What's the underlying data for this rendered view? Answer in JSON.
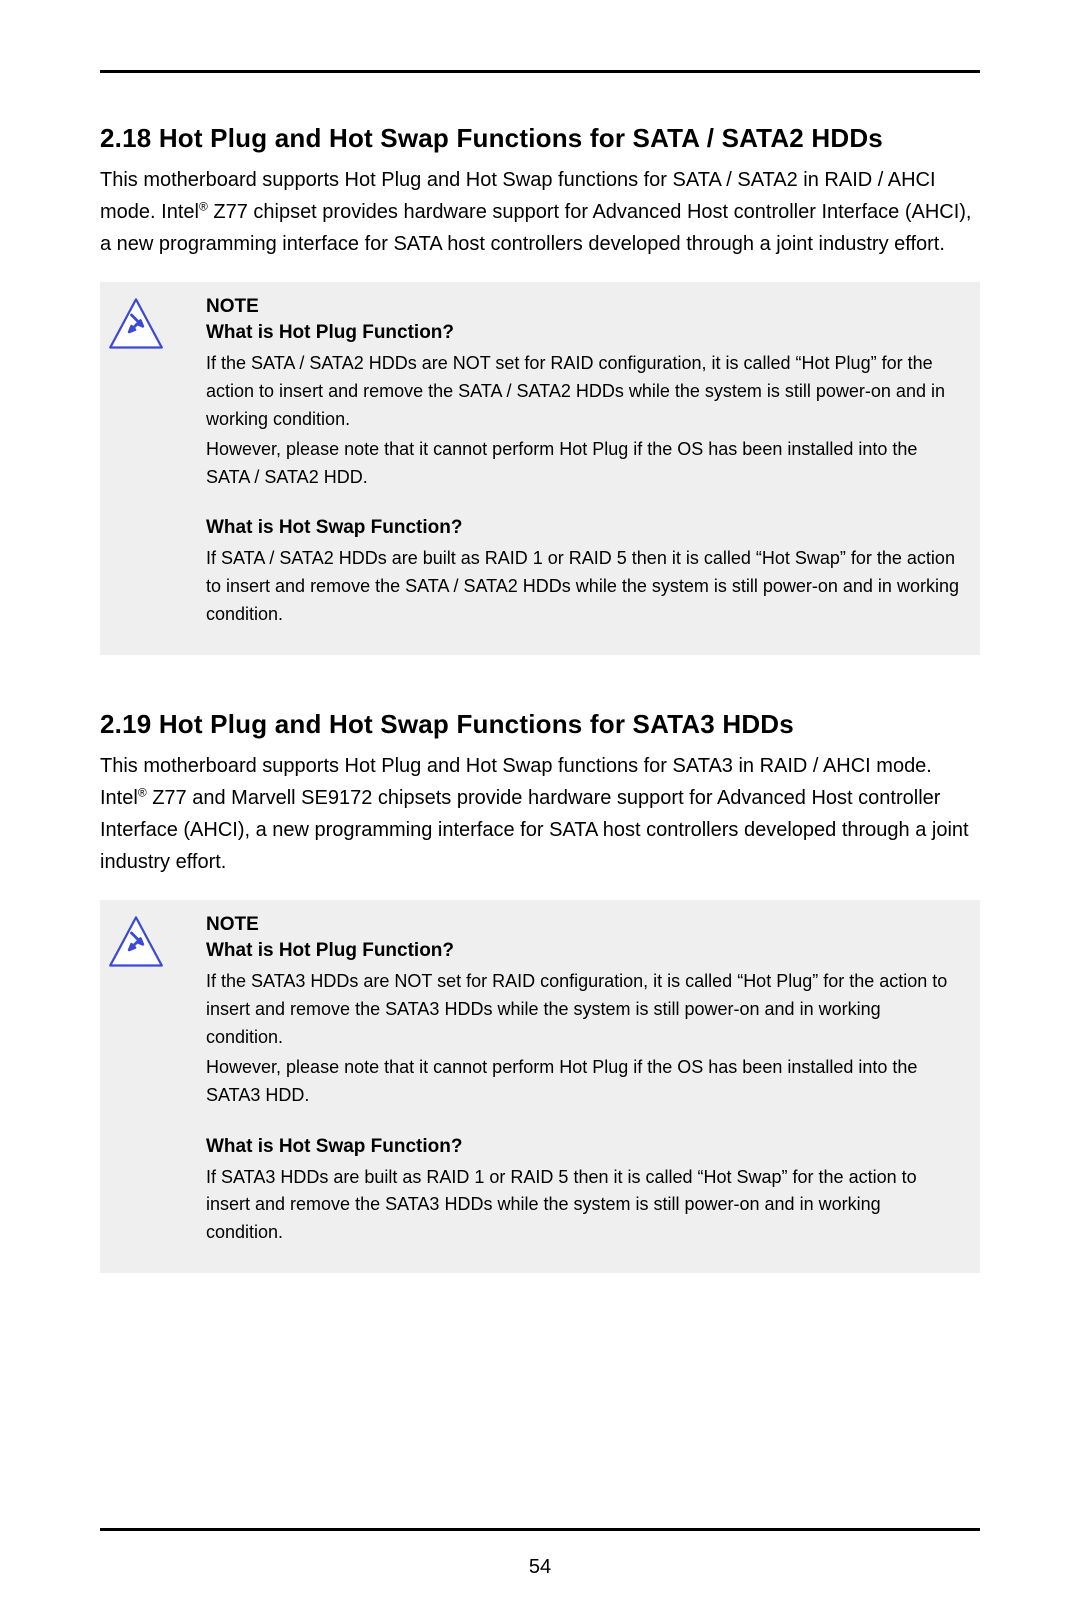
{
  "page": {
    "number": "54",
    "background": "#ffffff",
    "text_color": "#000000",
    "note_bg": "#efefef",
    "rule_color": "#000000"
  },
  "icon": {
    "stroke": "#3a49d6",
    "fill_top": "#ffffff",
    "fill_bottom": "#ffd24a"
  },
  "sections": [
    {
      "heading": "2.18  Hot Plug and Hot Swap Functions for SATA / SATA2 HDDs",
      "body_parts": [
        "This motherboard supports Hot Plug and Hot Swap functions for SATA / SATA2 in RAID / AHCI mode. Intel",
        "®",
        " Z77 chipset provides hardware support for Advanced Host controller Interface (AHCI), a new programming interface for SATA host controllers developed through a joint industry effort."
      ],
      "note": {
        "label": "NOTE",
        "blocks": [
          {
            "q": "What is Hot Plug Function?",
            "paras": [
              "If the SATA / SATA2 HDDs are NOT set for RAID configuration, it is called “Hot Plug” for the action to insert and remove the SATA / SATA2 HDDs while the system is still power-on and in working condition.",
              "However, please note that it cannot perform Hot Plug if the OS has been installed into the SATA / SATA2 HDD."
            ]
          },
          {
            "q": "What is Hot Swap Function?",
            "paras": [
              "If SATA / SATA2 HDDs are built as RAID 1 or RAID 5 then it is called “Hot Swap” for the action to insert and remove the SATA / SATA2 HDDs while the system is still power-on and in working condition."
            ]
          }
        ]
      }
    },
    {
      "heading": "2.19  Hot Plug and Hot Swap Functions for SATA3 HDDs",
      "body_parts": [
        "This motherboard supports Hot Plug and Hot Swap functions for SATA3 in RAID / AHCI mode. Intel",
        "®",
        " Z77 and Marvell SE9172 chipsets provide hardware support for Advanced Host controller Interface (AHCI), a new programming interface for SATA host controllers developed through a joint industry effort."
      ],
      "note": {
        "label": "NOTE",
        "blocks": [
          {
            "q": "What is Hot Plug Function?",
            "paras": [
              "If the SATA3 HDDs are NOT set for RAID configuration, it is called “Hot Plug” for the action to insert and remove the SATA3 HDDs while the system is still power-on and in working condition.",
              "However, please note that it cannot perform Hot Plug if the OS has been installed into the SATA3 HDD."
            ]
          },
          {
            "q": "What is Hot Swap Function?",
            "paras": [
              "If SATA3 HDDs are built as RAID 1 or RAID 5 then it is called “Hot Swap” for the action to insert and remove the SATA3 HDDs while the system is still power-on and in working condition."
            ]
          }
        ]
      }
    }
  ]
}
